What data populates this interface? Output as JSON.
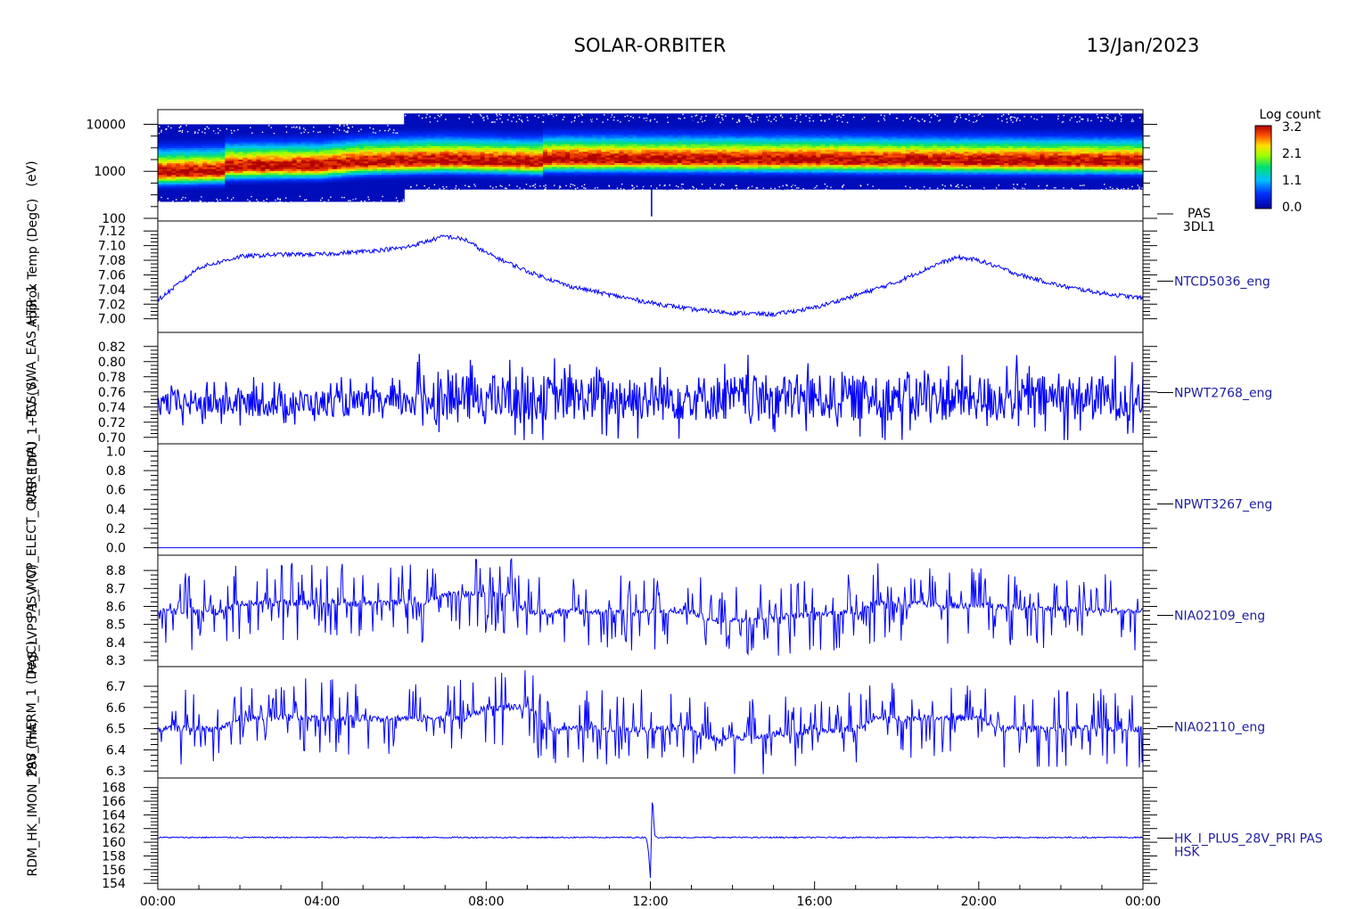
{
  "header": {
    "mission": "SOLAR-ORBITER",
    "date": "13/Jan/2023"
  },
  "colorbar": {
    "title": "Log count",
    "ticks": [
      "3.2",
      "2.1",
      "1.1",
      "0.0"
    ]
  },
  "y_axis_labels": [
    "(eV)",
    "Approx Temp (DegC)",
    "TCS_SWA_EAS_HTR_1",
    "PAS_EDPU_1+5V (V)",
    "PAS_MCP_ELECT_CURR (mA)",
    "PAS_LVPS_1_V (V)",
    "PAS_THERM_1 (DegC)",
    "RDM_HK_IMON_28V (mA)"
  ],
  "chart_data": [
    {
      "type": "heatmap",
      "panel_label": [
        "PAS",
        "3DL1"
      ],
      "x_range": [
        "00:00",
        "00:00"
      ],
      "y_scale": "log",
      "ylim": [
        100,
        18000
      ],
      "yticks": [
        "10000",
        "1000",
        "100"
      ],
      "yticks_values": [
        10000,
        1000,
        100
      ],
      "colorbar_range": [
        0.0,
        3.2
      ],
      "peak_energy_profile": [
        {
          "time": "00:00",
          "energy": 950
        },
        {
          "time": "01:36",
          "energy": 1000
        },
        {
          "time": "01:40",
          "energy": 1250
        },
        {
          "time": "04:00",
          "energy": 1300
        },
        {
          "time": "05:00",
          "energy": 1550
        },
        {
          "time": "07:00",
          "energy": 1700
        },
        {
          "time": "09:20",
          "energy": 1550
        },
        {
          "time": "09:25",
          "energy": 1800
        },
        {
          "time": "16:00",
          "energy": 1750
        },
        {
          "time": "20:00",
          "energy": 1650
        },
        {
          "time": "24:00",
          "energy": 1600
        }
      ]
    },
    {
      "type": "line",
      "panel_label": [
        "NTCD5036_eng"
      ],
      "ylim": [
        6.985,
        7.13
      ],
      "yticks": [
        "7.12",
        "7.10",
        "7.08",
        "7.06",
        "7.04",
        "7.02",
        "7.00"
      ],
      "yticks_values": [
        7.12,
        7.1,
        7.08,
        7.06,
        7.04,
        7.02,
        7.0
      ],
      "series": [
        {
          "x": [
            0,
            1,
            2,
            3,
            4,
            5,
            6,
            7,
            7.5,
            8,
            9,
            10,
            11,
            12,
            13,
            14,
            15,
            16,
            17,
            18,
            19,
            19.5,
            20,
            21,
            22,
            23,
            24
          ],
          "values": [
            7.025,
            7.07,
            7.085,
            7.088,
            7.088,
            7.092,
            7.097,
            7.113,
            7.108,
            7.09,
            7.065,
            7.045,
            7.033,
            7.022,
            7.013,
            7.008,
            7.006,
            7.015,
            7.032,
            7.05,
            7.075,
            7.084,
            7.08,
            7.06,
            7.045,
            7.035,
            7.028
          ]
        }
      ]
    },
    {
      "type": "line",
      "panel_label": [
        "NPWT2768_eng"
      ],
      "ylim": [
        0.695,
        0.835
      ],
      "yticks": [
        "0.82",
        "0.80",
        "0.78",
        "0.76",
        "0.74",
        "0.72",
        "0.70"
      ],
      "yticks_values": [
        0.82,
        0.8,
        0.78,
        0.76,
        0.74,
        0.72,
        0.7
      ],
      "series": [
        {
          "x": [
            0,
            6,
            6.1,
            24
          ],
          "values": [
            0.745,
            0.745,
            0.752,
            0.752
          ],
          "spread": [
            0.035,
            0.035,
            0.06,
            0.06
          ]
        }
      ]
    },
    {
      "type": "line",
      "panel_label": [
        "NPWT3267_eng"
      ],
      "ylim": [
        -0.05,
        1.05
      ],
      "yticks": [
        "1.0",
        "0.8",
        "0.6",
        "0.4",
        "0.2",
        "0.0"
      ],
      "yticks_values": [
        1.0,
        0.8,
        0.6,
        0.4,
        0.2,
        0.0
      ],
      "series": [
        {
          "x": [
            0,
            24
          ],
          "values": [
            0.0,
            0.0
          ]
        }
      ]
    },
    {
      "type": "line",
      "panel_label": [
        "NIA02109_eng"
      ],
      "ylim": [
        8.28,
        8.87
      ],
      "yticks": [
        "8.8",
        "8.7",
        "8.6",
        "8.5",
        "8.4",
        "8.3"
      ],
      "yticks_values": [
        8.8,
        8.7,
        8.6,
        8.5,
        8.4,
        8.3
      ],
      "series": [
        {
          "x": [
            0,
            1.5,
            2,
            6.5,
            7,
            8.5,
            9,
            13,
            13.5,
            17,
            17.5,
            24
          ],
          "values": [
            8.57,
            8.57,
            8.62,
            8.62,
            8.67,
            8.67,
            8.57,
            8.57,
            8.52,
            8.57,
            8.62,
            8.57
          ]
        }
      ]
    },
    {
      "type": "line",
      "panel_label": [
        "NIA02110_eng"
      ],
      "ylim": [
        6.28,
        6.78
      ],
      "yticks": [
        "6.7",
        "6.6",
        "6.5",
        "6.4",
        "6.3"
      ],
      "yticks_values": [
        6.7,
        6.6,
        6.5,
        6.4,
        6.3
      ],
      "series": [
        {
          "x": [
            0,
            1.5,
            2,
            7.5,
            8,
            9,
            9.5,
            13,
            13.5,
            17,
            17.5,
            20,
            20.5,
            24
          ],
          "values": [
            6.5,
            6.5,
            6.55,
            6.55,
            6.6,
            6.6,
            6.5,
            6.5,
            6.45,
            6.5,
            6.55,
            6.55,
            6.5,
            6.5
          ]
        }
      ]
    },
    {
      "type": "line",
      "panel_label": [
        "HK_I_PLUS_28V_PRI PAS",
        "HSK"
      ],
      "ylim": [
        153.5,
        169
      ],
      "yticks": [
        "168",
        "166",
        "164",
        "162",
        "160",
        "158",
        "156",
        "154"
      ],
      "yticks_values": [
        168,
        166,
        164,
        162,
        160,
        158,
        156,
        154
      ],
      "series": [
        {
          "x": [
            0,
            11.9,
            11.95,
            12.0,
            12.05,
            12.1,
            12.2,
            24
          ],
          "values": [
            160.7,
            160.7,
            159.0,
            154.8,
            167.3,
            161.0,
            160.7,
            160.7
          ]
        }
      ]
    }
  ],
  "x_axis": {
    "ticks": [
      "00:00",
      "04:00",
      "08:00",
      "12:00",
      "16:00",
      "20:00",
      "00:00"
    ],
    "ticks_values": [
      0,
      4,
      8,
      12,
      16,
      20,
      24
    ]
  }
}
